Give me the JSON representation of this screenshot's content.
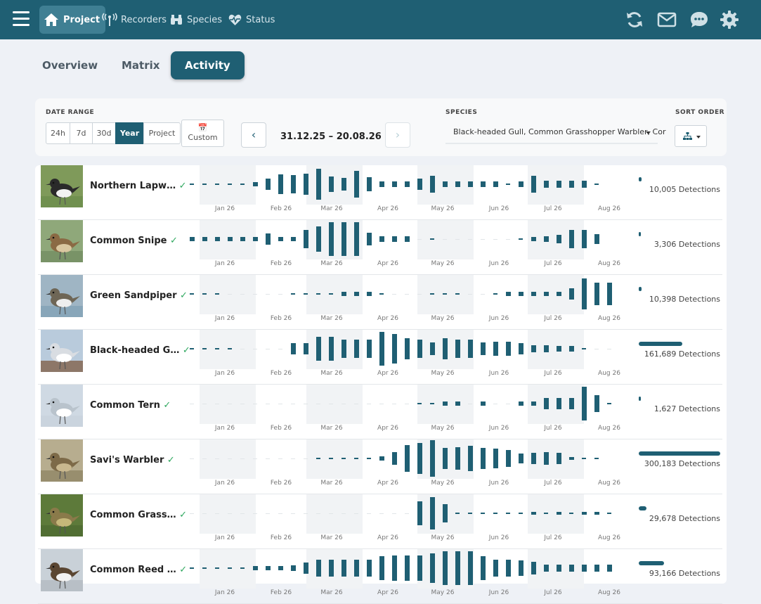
{
  "nav": {
    "items": [
      {
        "label": "Project",
        "icon": "home-icon",
        "active": true
      },
      {
        "label": "Recorders",
        "icon": "antenna-icon",
        "active": false
      },
      {
        "label": "Species",
        "icon": "binoculars-icon",
        "active": false
      },
      {
        "label": "Status",
        "icon": "heartbeat-icon",
        "active": false
      }
    ],
    "right_icons": [
      "refresh-icon",
      "mail-icon",
      "chat-icon",
      "settings-icon"
    ]
  },
  "tabs": [
    {
      "label": "Overview",
      "active": false
    },
    {
      "label": "Matrix",
      "active": false
    },
    {
      "label": "Activity",
      "active": true
    }
  ],
  "filters": {
    "date_range_label": "DATE RANGE",
    "ranges": [
      {
        "label": "24h",
        "active": false
      },
      {
        "label": "7d",
        "active": false
      },
      {
        "label": "30d",
        "active": false
      },
      {
        "label": "Year",
        "active": true
      },
      {
        "label": "Project",
        "active": false
      }
    ],
    "custom_icon": "📅",
    "custom_label": "Custom",
    "date_display": "31.12.25 – 20.08.26",
    "species_label": "SPECIES",
    "species_value": "Black-headed Gull, Common Grasshopper Warbler, Cor",
    "sort_label": "SORT ORDER"
  },
  "colors": {
    "accent": "#1f5f73",
    "shade": "#f1f3f5",
    "check": "#2fa85f"
  },
  "month_labels": [
    "Jan 26",
    "Feb 26",
    "Mar 26",
    "Apr 26",
    "May 26",
    "Jun 26",
    "Jul 26",
    "Aug 26"
  ],
  "species": [
    {
      "name": "Northern Lapw…",
      "detections": "10,005 Detections",
      "total": 10005,
      "levels": [
        1,
        1,
        1,
        1,
        1,
        3,
        8,
        14,
        13,
        15,
        22,
        11,
        9,
        19,
        10,
        4,
        4,
        4,
        8,
        12,
        4,
        4,
        4,
        4,
        4,
        1,
        4,
        12,
        5,
        5,
        5,
        5,
        1
      ],
      "bird": "lapwing"
    },
    {
      "name": "Common Snipe",
      "detections": "3,306 Detections",
      "total": 3306,
      "levels": [
        3,
        3,
        3,
        3,
        3,
        3,
        8,
        3,
        3,
        13,
        18,
        24,
        24,
        24,
        9,
        4,
        4,
        4,
        0,
        1,
        0,
        0,
        0,
        0,
        0,
        0,
        1,
        3,
        4,
        6,
        13,
        13,
        7
      ],
      "bird": "snipe"
    },
    {
      "name": "Green Sandpiper",
      "detections": "10,398 Detections",
      "total": 10398,
      "levels": [
        1,
        1,
        1,
        0,
        0,
        0,
        0,
        0,
        1,
        1,
        1,
        1,
        3,
        3,
        3,
        1,
        0,
        0,
        0,
        1,
        1,
        1,
        0,
        0,
        1,
        3,
        3,
        3,
        3,
        3,
        8,
        22,
        16,
        16,
        6
      ],
      "bird": "sandpiper"
    },
    {
      "name": "Black-headed G…",
      "detections": "161,689 Detections",
      "total": 161689,
      "levels": [
        1,
        1,
        1,
        1,
        0,
        0,
        0,
        0,
        8,
        8,
        17,
        17,
        13,
        13,
        13,
        24,
        21,
        15,
        13,
        9,
        15,
        13,
        13,
        9,
        10,
        10,
        8,
        5,
        5,
        4,
        4,
        1,
        0,
        0,
        0
      ],
      "bird": "gull"
    },
    {
      "name": "Common Tern",
      "detections": "1,627 Detections",
      "total": 1627,
      "levels": [
        0,
        0,
        0,
        0,
        0,
        0,
        0,
        0,
        0,
        0,
        0,
        0,
        0,
        0,
        0,
        0,
        0,
        0,
        1,
        1,
        3,
        3,
        0,
        3,
        0,
        0,
        3,
        3,
        8,
        8,
        8,
        24,
        12,
        1
      ],
      "bird": "tern"
    },
    {
      "name": "Savi's Warbler",
      "detections": "300,183 Detections",
      "total": 300183,
      "levels": [
        0,
        0,
        0,
        0,
        0,
        0,
        0,
        0,
        0,
        0,
        1,
        1,
        1,
        1,
        1,
        3,
        9,
        19,
        22,
        26,
        15,
        16,
        18,
        15,
        14,
        12,
        7,
        8,
        9,
        8,
        2,
        1,
        1
      ],
      "bird": "warbler"
    },
    {
      "name": "Common Grass…",
      "detections": "29,678 Detections",
      "total": 29678,
      "levels": [
        0,
        0,
        0,
        0,
        0,
        0,
        0,
        0,
        0,
        0,
        0,
        0,
        0,
        0,
        0,
        0,
        0,
        0,
        17,
        23,
        13,
        1,
        1,
        1,
        1,
        1,
        1,
        2,
        1,
        2,
        1,
        2,
        2,
        1,
        1
      ],
      "bird": "grasswarbler"
    },
    {
      "name": "Common Reed …",
      "detections": "93,166 Detections",
      "total": 93166,
      "levels": [
        1,
        1,
        1,
        1,
        1,
        3,
        3,
        3,
        4,
        8,
        12,
        12,
        12,
        12,
        12,
        17,
        18,
        18,
        18,
        21,
        24,
        24,
        24,
        17,
        12,
        12,
        11,
        9,
        5,
        5,
        5,
        5,
        5,
        5,
        4,
        4,
        4,
        3
      ],
      "bird": "bunting"
    }
  ]
}
